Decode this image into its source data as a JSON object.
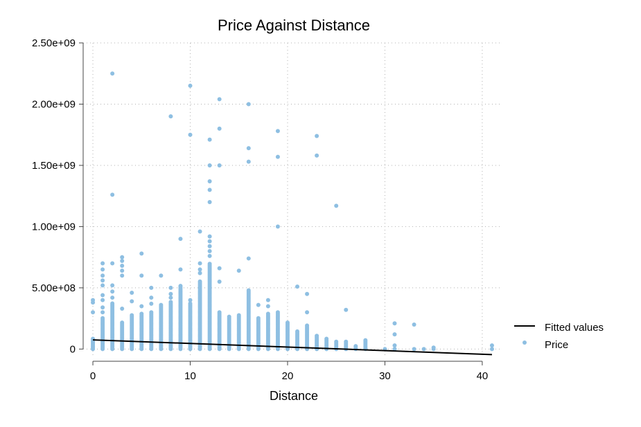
{
  "chart_data": {
    "type": "scatter",
    "title": "Price Against Distance",
    "xlabel": "Distance",
    "ylabel": "",
    "xlim": [
      -1,
      42
    ],
    "ylim": [
      -60000000,
      2500000000
    ],
    "xticks": [
      0,
      10,
      20,
      30,
      40
    ],
    "xtick_labels": [
      "0",
      "10",
      "20",
      "30",
      "40"
    ],
    "yticks": [
      0,
      500000000,
      1000000000,
      1500000000,
      2000000000,
      2500000000
    ],
    "ytick_labels": [
      "0",
      "5.00e+08",
      "1.00e+09",
      "1.50e+09",
      "2.00e+09",
      "2.50e+09"
    ],
    "grid": true,
    "legend_position": "right",
    "colors": {
      "price": "#8ebfe2",
      "fitted": "#000000"
    },
    "series": [
      {
        "name": "Fitted values",
        "kind": "line",
        "x": [
          0,
          41
        ],
        "y": [
          75000000,
          -45000000
        ]
      },
      {
        "name": "Price",
        "kind": "scatter",
        "columns": [
          {
            "x": 0,
            "ymin": 0,
            "ymax": 90000000,
            "step": 12000000,
            "outliers": [
              300000000,
              380000000,
              400000000
            ]
          },
          {
            "x": 1,
            "ymin": 0,
            "ymax": 260000000,
            "step": 12000000,
            "outliers": [
              300000000,
              340000000,
              400000000,
              440000000,
              520000000,
              560000000,
              600000000,
              650000000,
              700000000
            ]
          },
          {
            "x": 2,
            "ymin": 0,
            "ymax": 380000000,
            "step": 12000000,
            "outliers": [
              420000000,
              470000000,
              520000000,
              700000000,
              1260000000,
              2250000000
            ]
          },
          {
            "x": 3,
            "ymin": 0,
            "ymax": 220000000,
            "step": 12000000,
            "outliers": [
              330000000,
              600000000,
              640000000,
              680000000,
              720000000,
              750000000
            ]
          },
          {
            "x": 4,
            "ymin": 0,
            "ymax": 280000000,
            "step": 12000000,
            "outliers": [
              390000000,
              460000000
            ]
          },
          {
            "x": 5,
            "ymin": 0,
            "ymax": 290000000,
            "step": 12000000,
            "outliers": [
              350000000,
              600000000,
              780000000
            ]
          },
          {
            "x": 6,
            "ymin": 0,
            "ymax": 300000000,
            "step": 12000000,
            "outliers": [
              370000000,
              420000000,
              500000000
            ]
          },
          {
            "x": 7,
            "ymin": 0,
            "ymax": 360000000,
            "step": 12000000,
            "outliers": [
              600000000
            ]
          },
          {
            "x": 8,
            "ymin": 0,
            "ymax": 390000000,
            "step": 12000000,
            "outliers": [
              420000000,
              450000000,
              500000000,
              1900000000
            ]
          },
          {
            "x": 9,
            "ymin": 0,
            "ymax": 520000000,
            "step": 12000000,
            "outliers": [
              650000000,
              900000000
            ]
          },
          {
            "x": 10,
            "ymin": 0,
            "ymax": 380000000,
            "step": 12000000,
            "outliers": [
              400000000,
              1750000000,
              2150000000
            ]
          },
          {
            "x": 11,
            "ymin": 0,
            "ymax": 560000000,
            "step": 12000000,
            "outliers": [
              620000000,
              650000000,
              700000000,
              960000000
            ]
          },
          {
            "x": 12,
            "ymin": 0,
            "ymax": 700000000,
            "step": 12000000,
            "outliers": [
              760000000,
              800000000,
              840000000,
              880000000,
              920000000,
              1200000000,
              1300000000,
              1370000000,
              1500000000,
              1710000000
            ]
          },
          {
            "x": 13,
            "ymin": 0,
            "ymax": 300000000,
            "step": 12000000,
            "outliers": [
              550000000,
              660000000,
              1500000000,
              1800000000,
              2040000000
            ]
          },
          {
            "x": 14,
            "ymin": 0,
            "ymax": 270000000,
            "step": 12000000,
            "outliers": []
          },
          {
            "x": 15,
            "ymin": 0,
            "ymax": 280000000,
            "step": 12000000,
            "outliers": [
              640000000
            ]
          },
          {
            "x": 16,
            "ymin": 0,
            "ymax": 480000000,
            "step": 12000000,
            "outliers": [
              740000000,
              1530000000,
              1640000000,
              2000000000
            ]
          },
          {
            "x": 17,
            "ymin": 0,
            "ymax": 260000000,
            "step": 12000000,
            "outliers": [
              360000000
            ]
          },
          {
            "x": 18,
            "ymin": 0,
            "ymax": 290000000,
            "step": 12000000,
            "outliers": [
              350000000,
              400000000
            ]
          },
          {
            "x": 19,
            "ymin": 0,
            "ymax": 310000000,
            "step": 12000000,
            "outliers": [
              1000000000,
              1570000000,
              1780000000
            ]
          },
          {
            "x": 20,
            "ymin": 0,
            "ymax": 220000000,
            "step": 12000000,
            "outliers": []
          },
          {
            "x": 21,
            "ymin": 0,
            "ymax": 150000000,
            "step": 12000000,
            "outliers": [
              510000000
            ]
          },
          {
            "x": 22,
            "ymin": 0,
            "ymax": 200000000,
            "step": 12000000,
            "outliers": [
              300000000,
              450000000
            ]
          },
          {
            "x": 23,
            "ymin": 0,
            "ymax": 110000000,
            "step": 12000000,
            "outliers": [
              1580000000,
              1740000000
            ]
          },
          {
            "x": 24,
            "ymin": 0,
            "ymax": 90000000,
            "step": 12000000,
            "outliers": []
          },
          {
            "x": 25,
            "ymin": 0,
            "ymax": 60000000,
            "step": 12000000,
            "outliers": [
              1170000000
            ]
          },
          {
            "x": 26,
            "ymin": 0,
            "ymax": 60000000,
            "step": 12000000,
            "outliers": [
              320000000
            ]
          },
          {
            "x": 27,
            "ymin": 0,
            "ymax": 30000000,
            "step": 12000000,
            "outliers": []
          },
          {
            "x": 28,
            "ymin": 0,
            "ymax": 80000000,
            "step": 12000000,
            "outliers": []
          },
          {
            "x": 30,
            "ymin": 0,
            "ymax": 10000000,
            "step": 12000000,
            "outliers": []
          },
          {
            "x": 31,
            "ymin": 0,
            "ymax": 0,
            "step": 12000000,
            "outliers": [
              30000000,
              120000000,
              210000000
            ]
          },
          {
            "x": 33,
            "ymin": 0,
            "ymax": 0,
            "step": 12000000,
            "outliers": [
              200000000
            ]
          },
          {
            "x": 34,
            "ymin": 0,
            "ymax": 0,
            "step": 12000000,
            "outliers": []
          },
          {
            "x": 35,
            "ymin": 0,
            "ymax": 20000000,
            "step": 12000000,
            "outliers": []
          },
          {
            "x": 41,
            "ymin": 0,
            "ymax": 0,
            "step": 12000000,
            "outliers": [
              30000000
            ]
          }
        ]
      }
    ]
  }
}
